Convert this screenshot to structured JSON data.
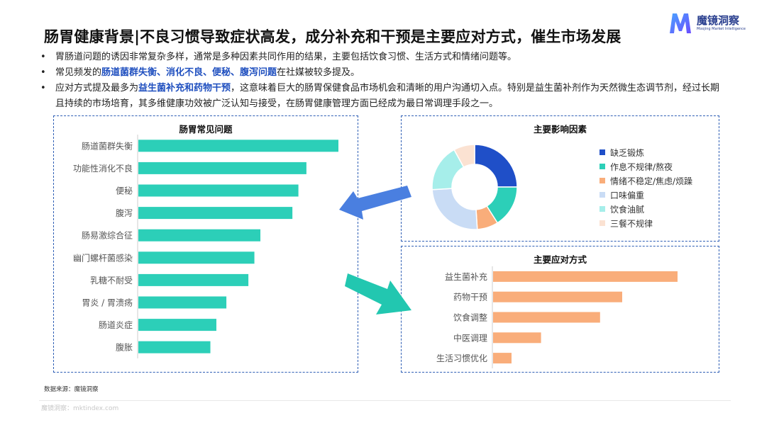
{
  "title": "肠胃健康背景|不良习惯导致症状高发，成分补充和干预是主要应对方式，催生市场发展",
  "logo": {
    "name": "魔镜洞察",
    "subtitle": "Moojing Market Intelligence",
    "icon": "m-logo-icon"
  },
  "bullets": [
    {
      "parts": [
        {
          "text": "胃肠道问题的诱因非常复杂多样，通常是多种因素共同作用的结果，主要包括饮食习惯、生活方式和情绪问题等。",
          "hl": false
        }
      ]
    },
    {
      "parts": [
        {
          "text": "常见频发的",
          "hl": false
        },
        {
          "text": "肠道菌群失衡、消化不良、便秘、腹泻问题",
          "hl": true
        },
        {
          "text": "在社媒被较多提及。",
          "hl": false
        }
      ]
    },
    {
      "parts": [
        {
          "text": "应对方式提及最多为",
          "hl": false
        },
        {
          "text": "益生菌补充和药物干预",
          "hl": true
        },
        {
          "text": "，这意味着巨大的肠胃保健食品市场机会和清晰的用户沟通切入点。特别是益生菌补剂作为天然微生态调节剂，经过长期且持续的市场培育，其多维健康功效被广泛认知与接受，在肠胃健康管理方面已经成为最日常调理手段之一。",
          "hl": false
        }
      ]
    }
  ],
  "source": "数据来源：魔镜洞察",
  "footer": "魔镜洞察：mktindex.com",
  "colors": {
    "accent": "#1f4fbf",
    "bar_teal": "#2ccfb8",
    "bar_orange": "#f9ad7a",
    "arrow_blue": "#4a7fe0",
    "arrow_teal": "#22c7b0",
    "panel_border": "#2f5fb5"
  },
  "arrows": [
    {
      "name": "left-arrow-icon",
      "direction": "left"
    },
    {
      "name": "down-right-arrow-icon",
      "direction": "down-right"
    }
  ],
  "chart_data": [
    {
      "type": "bar",
      "orientation": "horizontal",
      "title": "肠胃常见问题",
      "categories": [
        "肠道菌群失衡",
        "功能性消化不良",
        "便秘",
        "腹泻",
        "肠易激综合征",
        "幽门螺杆菌感染",
        "乳糖不耐受",
        "胃炎 / 胃溃疡",
        "肠道炎症",
        "腹胀"
      ],
      "values": [
        100,
        84,
        80,
        77,
        61,
        58,
        55,
        44,
        39,
        36
      ],
      "xlim": [
        0,
        100
      ],
      "axis_tick_labels": false,
      "grid": false,
      "legend": false
    },
    {
      "type": "pie",
      "donut": true,
      "title": "主要影响因素",
      "labels": [
        "缺乏锻炼",
        "作息不规律/熬夜",
        "情绪不稳定/焦虑/烦躁",
        "口味偏重",
        "饮食油腻",
        "三餐不规律"
      ],
      "values": [
        25,
        16,
        8,
        25,
        18,
        8
      ],
      "colors": [
        "#1f4fc8",
        "#2ccfb8",
        "#f9ad7a",
        "#c9dcf5",
        "#a6eeea",
        "#fbe2d2"
      ],
      "legend": "right"
    },
    {
      "type": "bar",
      "orientation": "horizontal",
      "title": "主要应对方式",
      "categories": [
        "益生菌补充",
        "药物干预",
        "饮食调整",
        "中医调理",
        "生活习惯优化"
      ],
      "values": [
        100,
        70,
        58,
        26,
        10
      ],
      "xlim": [
        0,
        100
      ],
      "axis_tick_labels": false,
      "grid": false,
      "legend": false
    }
  ]
}
